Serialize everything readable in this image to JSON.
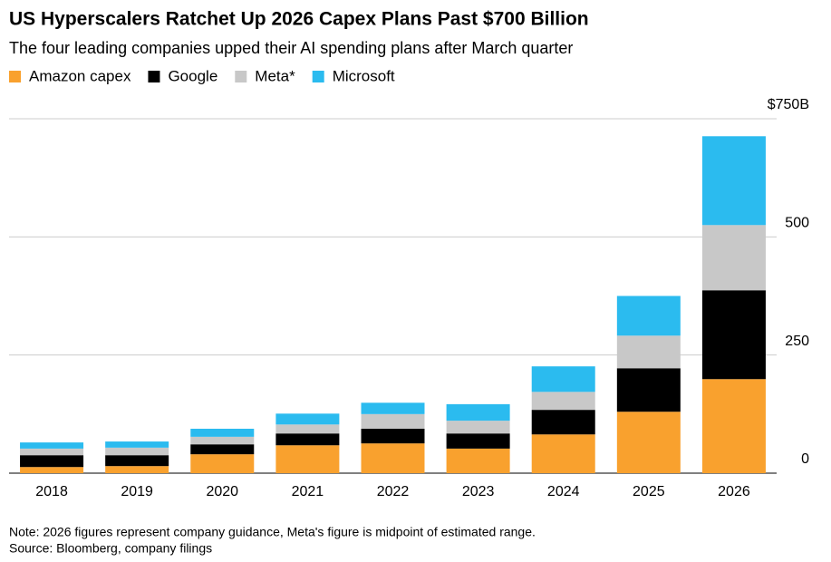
{
  "chart_data": {
    "type": "stacked_bar",
    "title": "US Hyperscalers Ratchet Up 2026 Capex Plans Past $700 Billion",
    "subtitle": "The four leading companies upped their AI spending plans after March quarter",
    "categories": [
      "2018",
      "2019",
      "2020",
      "2021",
      "2022",
      "2023",
      "2024",
      "2025",
      "2026"
    ],
    "series": [
      {
        "name": "Amazon capex",
        "color": "#f9a12e",
        "values": [
          13,
          15,
          40,
          59,
          63,
          52,
          82,
          130,
          199
        ]
      },
      {
        "name": "Google",
        "color": "#000000",
        "values": [
          25,
          23,
          21,
          25,
          31,
          32,
          52,
          92,
          188
        ]
      },
      {
        "name": "Meta*",
        "color": "#c8c8c8",
        "values": [
          14,
          16,
          16,
          19,
          31,
          27,
          38,
          69,
          138
        ]
      },
      {
        "name": "Microsoft",
        "color": "#2bbbef",
        "values": [
          13,
          13,
          17,
          23,
          24,
          35,
          54,
          84,
          188
        ]
      }
    ],
    "ylim": [
      0,
      750
    ],
    "yticks": [
      0,
      250,
      500,
      {
        "value": 750,
        "label": "$750B"
      }
    ],
    "grid": true,
    "notes": [
      "Note: 2026 figures represent company guidance, Meta's figure is midpoint of estimated range.",
      "Source: Bloomberg, company filings"
    ]
  }
}
